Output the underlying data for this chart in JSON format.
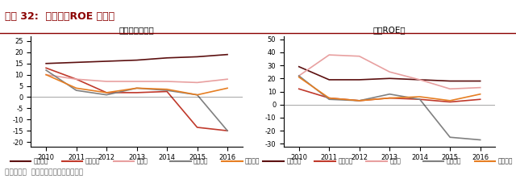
{
  "title_main": "图表 32:  净利率和ROE 均较高",
  "title_left": "海天净利润率高",
  "title_right": "海天ROE高",
  "footnote": "资料来源：  公司数据，中金公司研究部",
  "years": [
    2010,
    2011,
    2012,
    2013,
    2014,
    2015,
    2016
  ],
  "left": {
    "series": {
      "海天国际": [
        15,
        15.5,
        16,
        16.5,
        17.5,
        18,
        19
      ],
      "震雄集团": [
        13,
        8,
        2,
        2,
        2.5,
        -13.5,
        -15
      ],
      "伊之密": [
        10,
        8,
        7,
        7,
        7,
        6.5,
        8
      ],
      "大同机械": [
        12,
        3,
        1,
        4,
        3,
        1,
        -15
      ],
      "力劲科技": [
        10,
        4,
        2,
        4,
        3.5,
        1,
        4
      ]
    },
    "ylim": [
      -22,
      27
    ],
    "yticks": [
      -20,
      -15,
      -10,
      -5,
      0,
      5,
      10,
      15,
      20,
      25
    ]
  },
  "right": {
    "series": {
      "海天国际": [
        29,
        19,
        19,
        20,
        19,
        18,
        18
      ],
      "震雄集团": [
        12,
        5,
        3,
        5,
        4,
        2,
        4
      ],
      "伊之密": [
        22,
        38,
        37,
        25,
        19,
        12,
        13
      ],
      "大同机械": [
        22,
        4,
        3,
        8,
        4,
        -25,
        -27
      ],
      "力劲科技": [
        21,
        5,
        3,
        5,
        6,
        3,
        8
      ]
    },
    "ylim": [
      -32,
      52
    ],
    "yticks": [
      -30,
      -20,
      -10,
      0,
      10,
      20,
      30,
      40,
      50
    ]
  },
  "colors": {
    "海天国际": "#5c1010",
    "震雄集团": "#c0392b",
    "伊之密": "#e8a0a0",
    "大同机械": "#808080",
    "力劲科技": "#e67e22"
  },
  "background": "#f5f5f0",
  "header_color": "#8b0000",
  "header_bg": "#f0e8e8"
}
